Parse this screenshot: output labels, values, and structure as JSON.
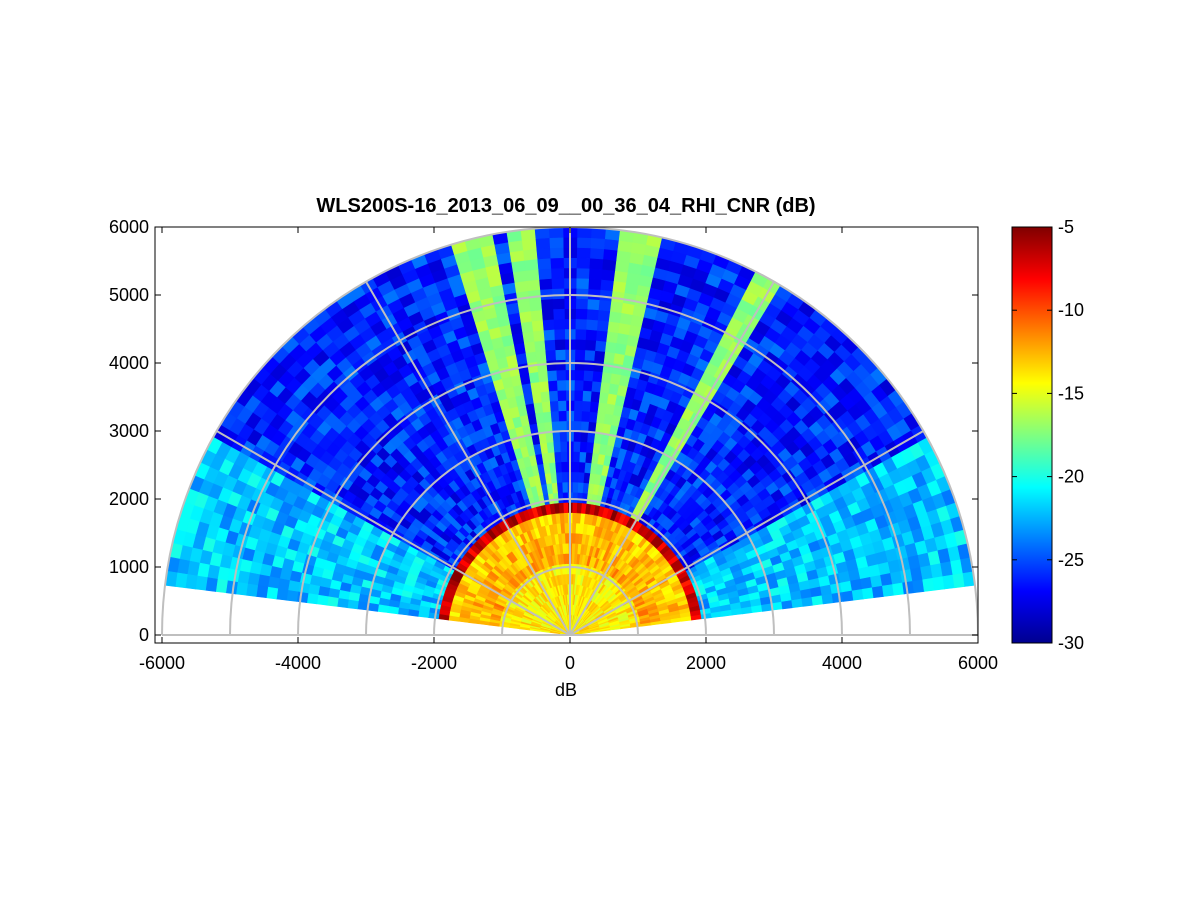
{
  "chart_data": {
    "type": "heatmap",
    "subtype": "polar-rhi-scan",
    "title": "WLS200S-16_2013_06_09__00_36_04_RHI_CNR (dB)",
    "xlabel": "dB",
    "ylabel": "",
    "xlim": [
      -6000,
      6000
    ],
    "ylim": [
      0,
      6000
    ],
    "x_ticks": [
      -6000,
      -4000,
      -2000,
      0,
      2000,
      4000,
      6000
    ],
    "y_ticks": [
      0,
      1000,
      2000,
      3000,
      4000,
      5000,
      6000
    ],
    "max_range": 6000,
    "range_rings": [
      1000,
      2000,
      3000,
      4000,
      5000,
      6000
    ],
    "spoke_angles_deg": [
      0,
      30,
      60,
      90,
      120,
      150,
      180
    ],
    "elevation_coverage_deg": [
      7,
      173
    ],
    "colorbar": {
      "colormap": "jet",
      "range": [
        -30,
        -5
      ],
      "ticks": [
        -5,
        -10,
        -15,
        -20,
        -25,
        -30
      ]
    },
    "cnr_profile_dB": {
      "near_field_0_to_1000": -14,
      "mid_field_1000_to_1900": -12,
      "boundary_layer_top_approx_1900": -7,
      "above_boundary_layer": -26
    },
    "high_cnr_beams_elevation_deg": [
      61,
      80,
      97,
      104
    ]
  }
}
